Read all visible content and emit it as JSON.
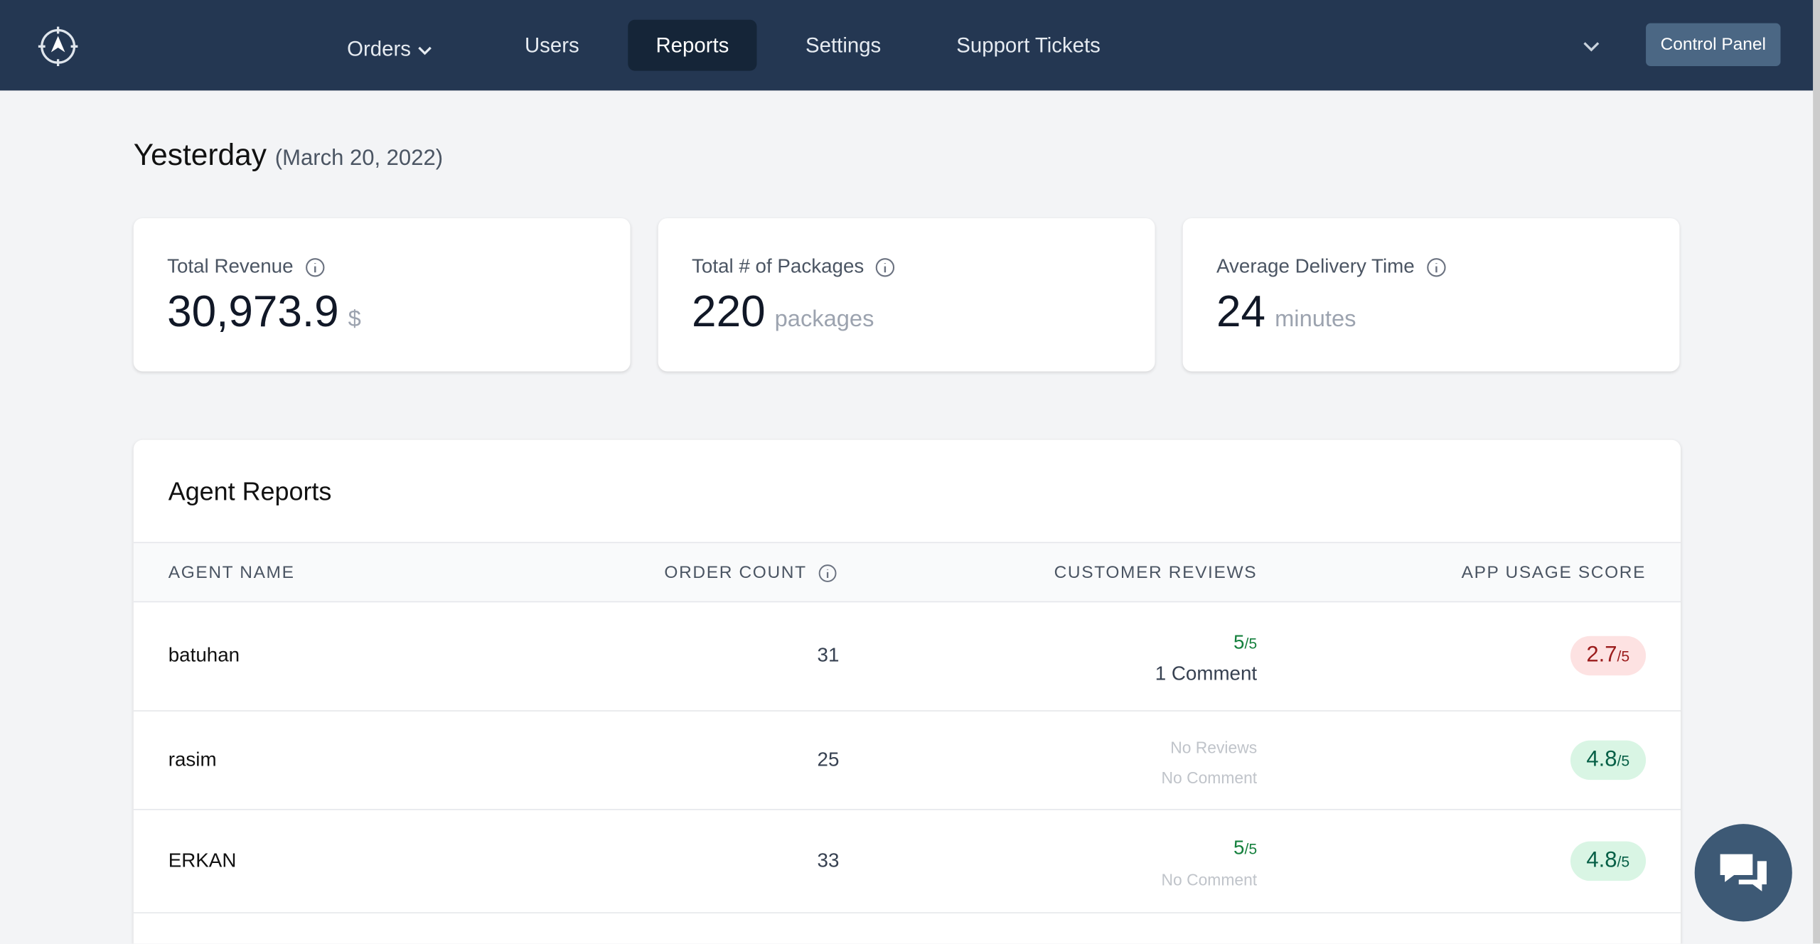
{
  "nav": {
    "items": [
      "Orders",
      "Users",
      "Reports",
      "Settings",
      "Support Tickets"
    ],
    "button": "Control Panel"
  },
  "header": {
    "title": "Yesterday",
    "date": "(March 20, 2022)"
  },
  "cards": [
    {
      "label": "Total Revenue",
      "value": "30,973.9",
      "unit": "$"
    },
    {
      "label": "Total # of Packages",
      "value": "220",
      "unit": "packages"
    },
    {
      "label": "Average Delivery Time",
      "value": "24",
      "unit": "minutes"
    }
  ],
  "table": {
    "title": "Agent Reports",
    "columns": [
      "AGENT NAME",
      "ORDER COUNT",
      "CUSTOMER REVIEWS",
      "APP USAGE SCORE"
    ],
    "rows": [
      {
        "name": "batuhan",
        "orders": "31",
        "review": "5",
        "review_max": "/5",
        "comment": "1 Comment",
        "score": "2.7",
        "score_max": "/5"
      },
      {
        "name": "rasim",
        "orders": "25",
        "review": "No Reviews",
        "comment": "No Comment",
        "score": "4.8",
        "score_max": "/5"
      },
      {
        "name": "ERKAN",
        "orders": "33",
        "review": "5",
        "review_max": "/5",
        "comment": "No Comment",
        "score": "4.8",
        "score_max": "/5"
      }
    ]
  }
}
